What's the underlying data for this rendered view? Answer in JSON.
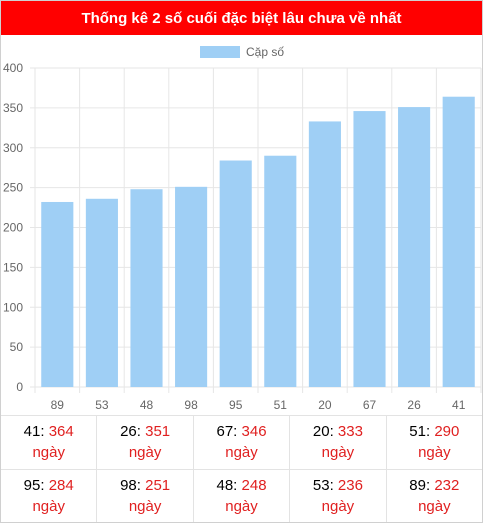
{
  "header": {
    "title": "Thống kê 2 số cuối đặc biệt lâu chưa về nhất"
  },
  "chart_data": {
    "type": "bar",
    "legend": "Cặp số",
    "legend_position": "top-center",
    "categories": [
      "89",
      "53",
      "48",
      "98",
      "95",
      "51",
      "20",
      "67",
      "26",
      "41"
    ],
    "series": [
      {
        "name": "Cặp số",
        "values": [
          232,
          236,
          248,
          251,
          284,
          290,
          333,
          346,
          351,
          364
        ]
      }
    ],
    "ylim": [
      0,
      400
    ],
    "yticks": [
      "0",
      "50",
      "100",
      "150",
      "200",
      "250",
      "300",
      "350",
      "400"
    ],
    "grid": true,
    "bar_color": "#9fcff5",
    "grid_color": "#e6e6e6"
  },
  "stats": {
    "rows": [
      [
        {
          "num": "41",
          "days": "364",
          "unit": "ngày"
        },
        {
          "num": "26",
          "days": "351",
          "unit": "ngày"
        },
        {
          "num": "67",
          "days": "346",
          "unit": "ngày"
        },
        {
          "num": "20",
          "days": "333",
          "unit": "ngày"
        },
        {
          "num": "51",
          "days": "290",
          "unit": "ngày"
        }
      ],
      [
        {
          "num": "95",
          "days": "284",
          "unit": "ngày"
        },
        {
          "num": "98",
          "days": "251",
          "unit": "ngày"
        },
        {
          "num": "48",
          "days": "248",
          "unit": "ngày"
        },
        {
          "num": "53",
          "days": "236",
          "unit": "ngày"
        },
        {
          "num": "89",
          "days": "232",
          "unit": "ngày"
        }
      ]
    ]
  }
}
